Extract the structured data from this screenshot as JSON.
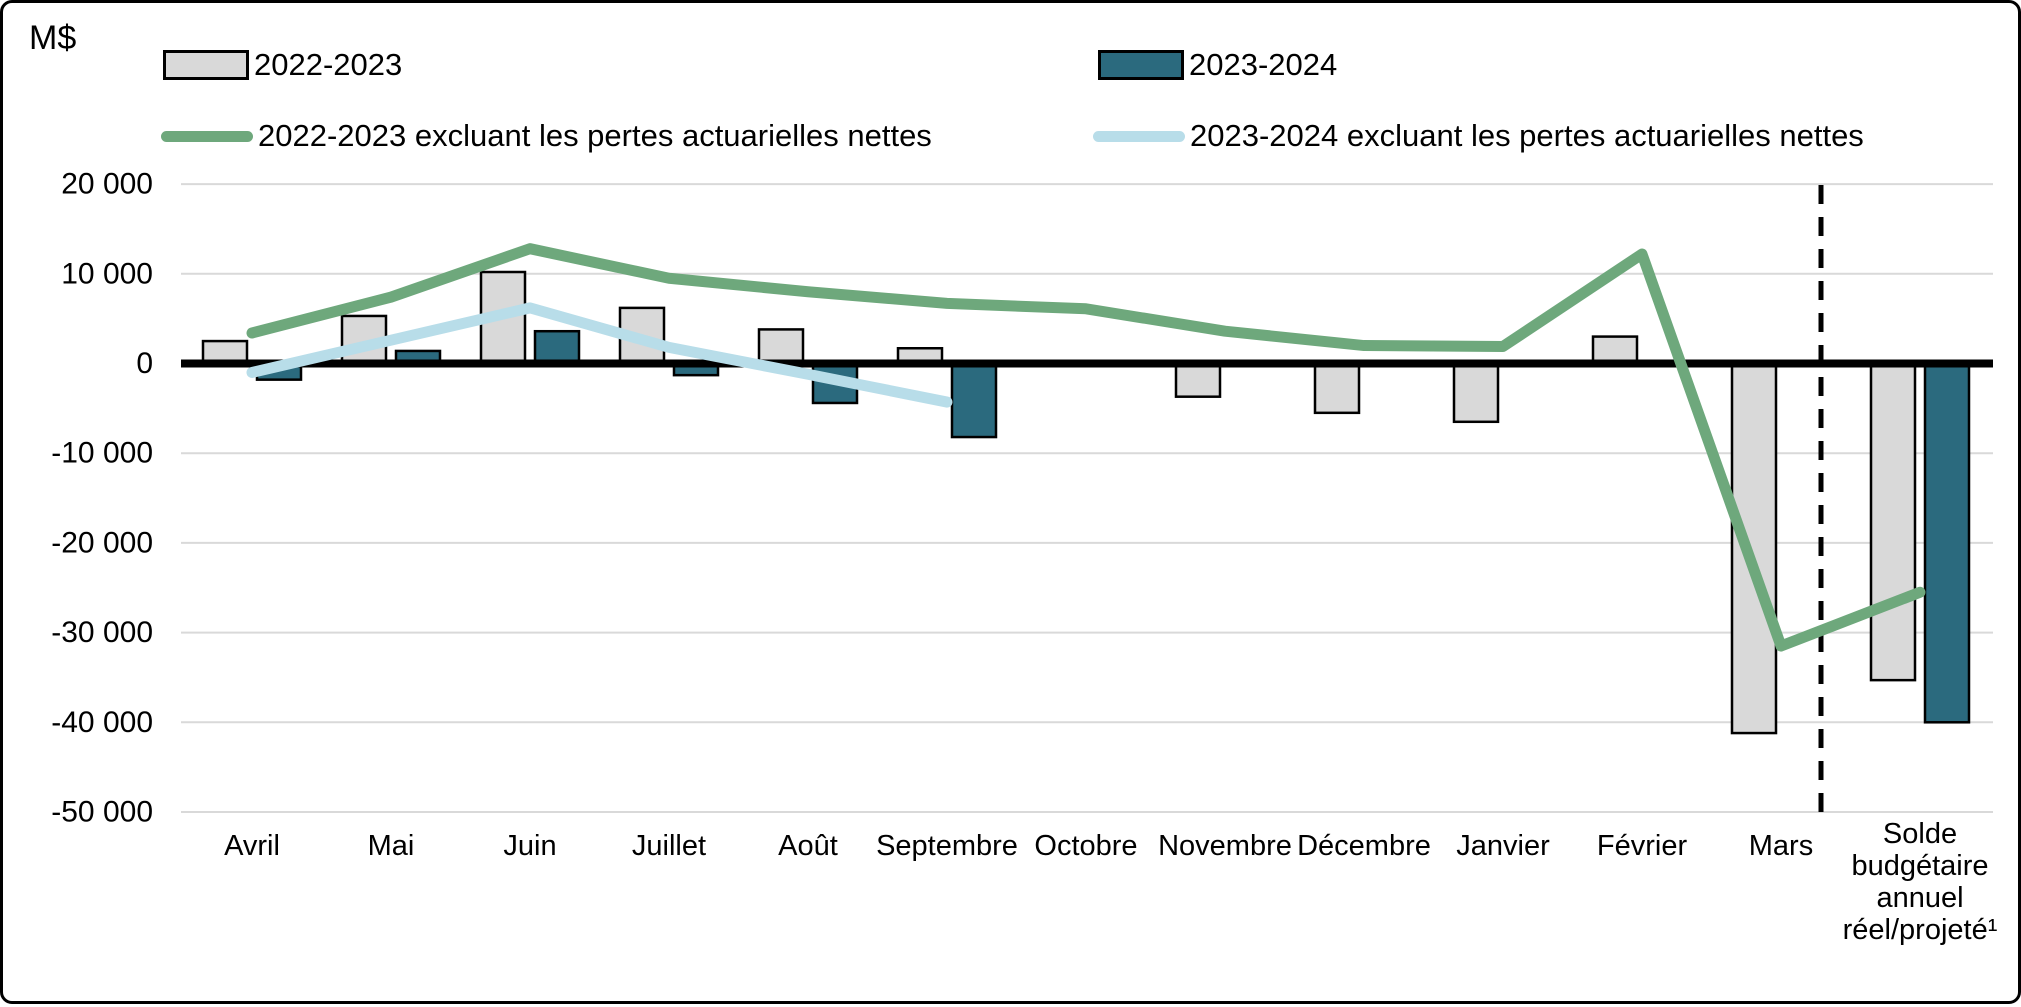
{
  "chart": {
    "unit": "M$"
  },
  "legend": {
    "items": [
      {
        "label": "2022-2023",
        "type": "bar",
        "color": "#d9d9d9"
      },
      {
        "label": "2023-2024",
        "type": "bar",
        "color": "#2b6a7e"
      },
      {
        "label": "2022-2023 excluant les pertes actuarielles nettes",
        "type": "line",
        "color": "#6ea87c"
      },
      {
        "label": "2023-2024 excluant les pertes actuarielles nettes",
        "type": "line",
        "color": "#b8dde9"
      }
    ]
  },
  "chart_data": {
    "type": "bar",
    "title": "",
    "ylabel": "M$",
    "xlabel": "",
    "grid": true,
    "legend_position": "top",
    "ylim": [
      -50000,
      20000
    ],
    "ytick_interval": 10000,
    "yticks": [
      20000,
      10000,
      0,
      -10000,
      -20000,
      -30000,
      -40000,
      -50000
    ],
    "ytick_labels": [
      "20 000",
      "10 000",
      "0",
      "-10 000",
      "-20 000",
      "-30 000",
      "-40 000",
      "-50 000"
    ],
    "categories": [
      "Avril",
      "Mai",
      "Juin",
      "Juillet",
      "Août",
      "Septembre",
      "Octobre",
      "Novembre",
      "Décembre",
      "Janvier",
      "Février",
      "Mars",
      "Solde budgétaire annuel réel/projeté¹"
    ],
    "last_category_lines": [
      "Solde",
      "budgétaire",
      "annuel",
      "réel/projeté¹"
    ],
    "dashed_divider_before_last_category": true,
    "series": [
      {
        "name": "2022-2023",
        "type": "bar",
        "color": "#d9d9d9",
        "values": [
          2500,
          5300,
          10200,
          6200,
          3800,
          1700,
          null,
          -3700,
          -5500,
          -6500,
          3000,
          -41200,
          -35300
        ]
      },
      {
        "name": "2023-2024",
        "type": "bar",
        "color": "#2b6a7e",
        "values": [
          -1800,
          1400,
          3600,
          -1300,
          -4400,
          -8200,
          null,
          null,
          null,
          null,
          null,
          null,
          -40000
        ]
      },
      {
        "name": "2022-2023 excluant les pertes actuarielles nettes",
        "type": "line",
        "color": "#6ea87c",
        "values": [
          3400,
          7400,
          12800,
          9500,
          8000,
          6700,
          6100,
          3600,
          2000,
          1900,
          12200,
          -31500,
          -25500
        ]
      },
      {
        "name": "2023-2024 excluant les pertes actuarielles nettes",
        "type": "line",
        "color": "#b8dde9",
        "values": [
          -1000,
          2600,
          6200,
          1800,
          -1200,
          -4300,
          null,
          null,
          null,
          null,
          null,
          null,
          null
        ]
      }
    ],
    "axis_colors": {
      "grid": "#d9d9d9",
      "zero_axis": "#000000",
      "text": "#000000"
    }
  }
}
